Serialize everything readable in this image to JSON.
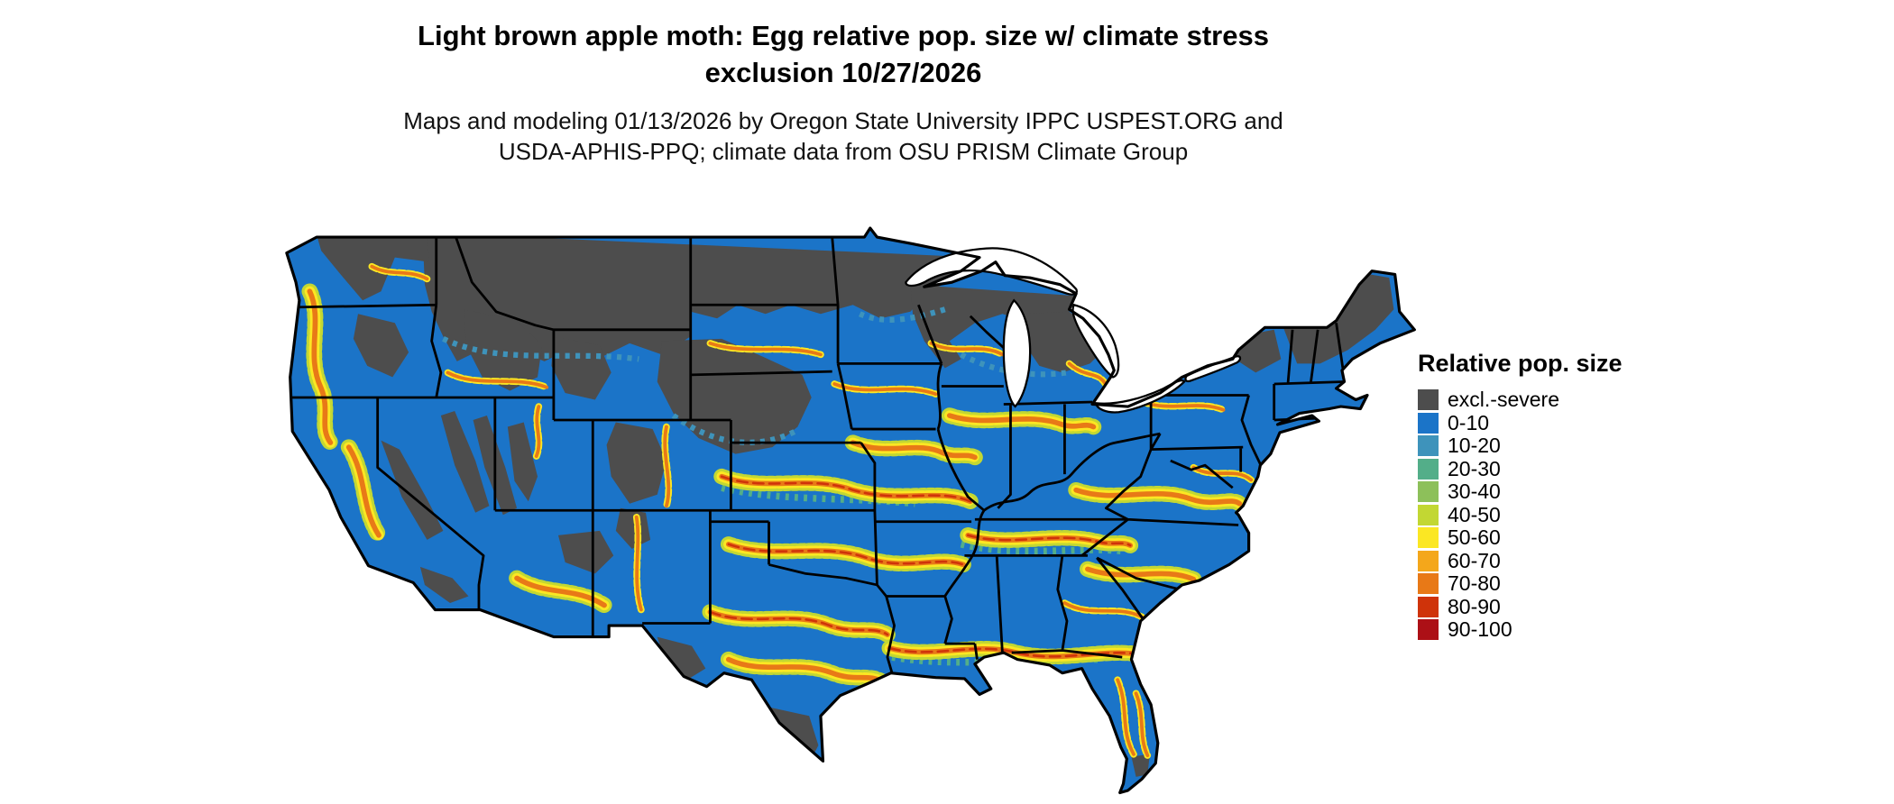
{
  "title": {
    "line1": "Light brown apple moth: Egg relative pop. size w/ climate stress",
    "line2": "exclusion 10/27/2026"
  },
  "subtitle": {
    "line1": "Maps and modeling 01/13/2026 by Oregon State University IPPC USPEST.ORG and",
    "line2": "USDA-APHIS-PPQ; climate data from OSU PRISM Climate Group"
  },
  "map": {
    "alt": "Raster risk map of the contiguous United States with state borders; blue indicates low relative population size, yellow-orange-red bands indicate higher values, dark gray indicates exclusion by severe climate stress"
  },
  "legend": {
    "title": "Relative pop. size",
    "items": [
      {
        "label": "excl.-severe",
        "color": "#4D4D4D"
      },
      {
        "label": "0-10",
        "color": "#1B74C8"
      },
      {
        "label": "10-20",
        "color": "#3E93BB"
      },
      {
        "label": "20-30",
        "color": "#53AE89"
      },
      {
        "label": "30-40",
        "color": "#8DC05A"
      },
      {
        "label": "40-50",
        "color": "#C2D733"
      },
      {
        "label": "50-60",
        "color": "#FBE723"
      },
      {
        "label": "60-70",
        "color": "#F4A71B"
      },
      {
        "label": "70-80",
        "color": "#E87917"
      },
      {
        "label": "80-90",
        "color": "#CF330A"
      },
      {
        "label": "90-100",
        "color": "#AC1016"
      }
    ]
  }
}
